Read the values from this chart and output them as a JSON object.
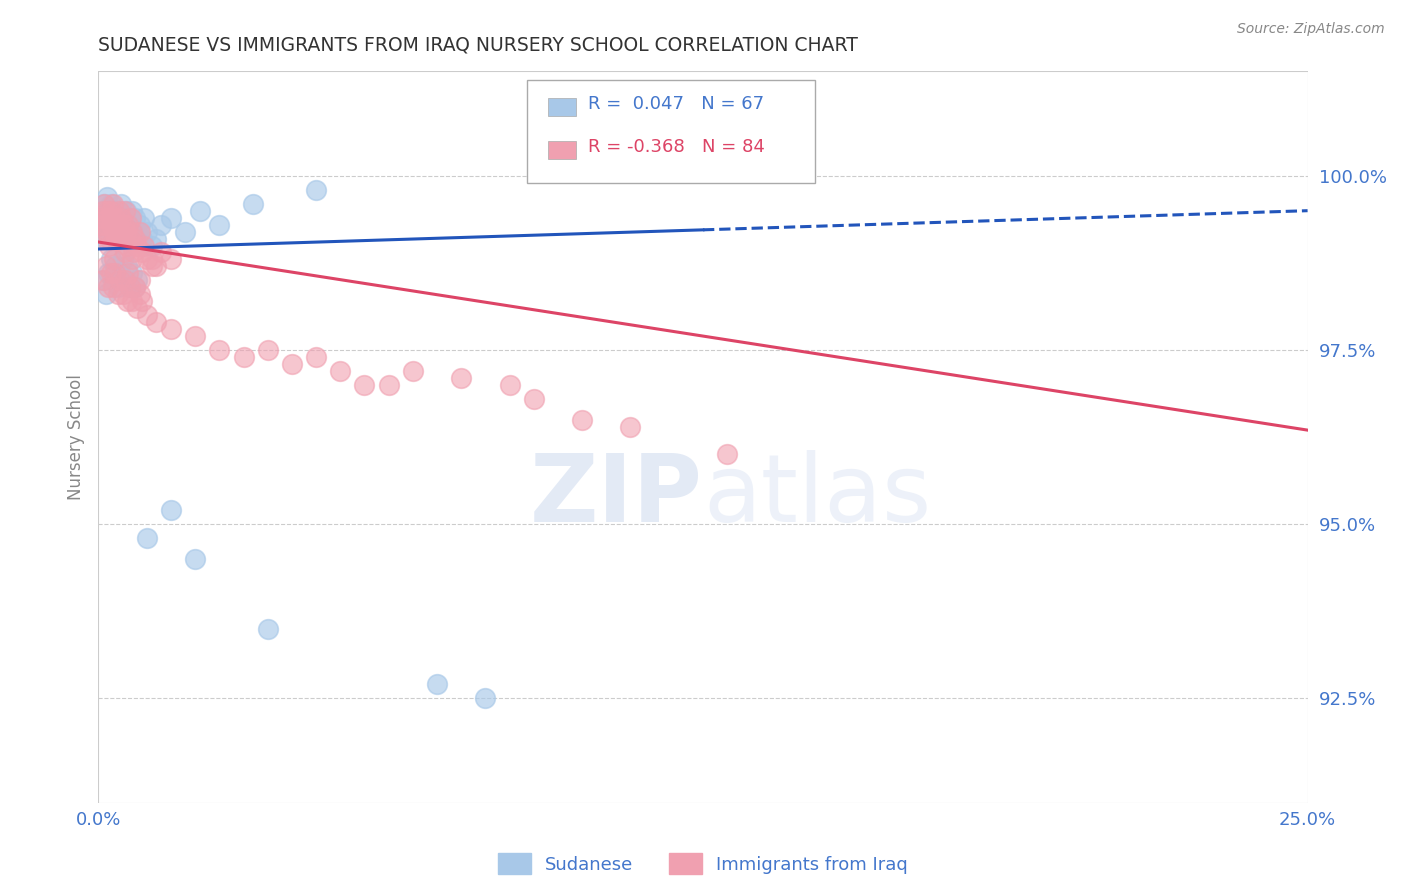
{
  "title": "SUDANESE VS IMMIGRANTS FROM IRAQ NURSERY SCHOOL CORRELATION CHART",
  "source": "Source: ZipAtlas.com",
  "ylabel": "Nursery School",
  "xlim": [
    0.0,
    25.0
  ],
  "ylim": [
    91.0,
    101.5
  ],
  "yticks": [
    92.5,
    95.0,
    97.5,
    100.0
  ],
  "xticks": [
    0.0,
    25.0
  ],
  "legend_r1": "R =  0.047",
  "legend_n1": "N = 67",
  "legend_r2": "R = -0.368",
  "legend_n2": "N = 84",
  "blue_color": "#a8c8e8",
  "pink_color": "#f0a0b0",
  "trend_blue": "#2255bb",
  "trend_pink": "#dd4466",
  "text_color": "#4477cc",
  "blue_slope": 0.022,
  "blue_intercept": 98.95,
  "blue_solid_xmax": 12.5,
  "pink_slope": -0.108,
  "pink_intercept": 99.05,
  "blue_x": [
    0.05,
    0.07,
    0.08,
    0.1,
    0.12,
    0.13,
    0.15,
    0.17,
    0.18,
    0.2,
    0.22,
    0.25,
    0.27,
    0.3,
    0.32,
    0.35,
    0.37,
    0.4,
    0.42,
    0.45,
    0.47,
    0.5,
    0.52,
    0.55,
    0.57,
    0.6,
    0.62,
    0.65,
    0.67,
    0.7,
    0.72,
    0.75,
    0.8,
    0.85,
    0.9,
    0.95,
    1.0,
    1.1,
    1.2,
    1.3,
    1.5,
    1.8,
    2.1,
    2.5,
    3.2,
    4.5,
    0.1,
    0.15,
    0.2,
    0.25,
    0.3,
    0.35,
    0.4,
    0.45,
    0.5,
    0.55,
    0.6,
    0.65,
    0.7,
    0.75,
    0.8,
    1.0,
    1.5,
    2.0,
    3.5,
    7.0,
    8.0
  ],
  "blue_y": [
    99.3,
    99.5,
    99.2,
    99.4,
    99.6,
    99.3,
    99.1,
    99.5,
    99.7,
    99.4,
    99.2,
    99.6,
    99.3,
    99.5,
    99.2,
    99.4,
    99.1,
    99.3,
    99.5,
    99.2,
    99.6,
    99.4,
    99.1,
    99.3,
    99.5,
    99.2,
    99.4,
    99.1,
    99.3,
    99.5,
    99.2,
    99.4,
    99.2,
    99.3,
    99.1,
    99.4,
    99.2,
    99.0,
    99.1,
    99.3,
    99.4,
    99.2,
    99.5,
    99.3,
    99.6,
    99.8,
    98.5,
    98.3,
    98.6,
    98.8,
    98.5,
    98.7,
    98.4,
    98.6,
    98.8,
    98.5,
    98.7,
    98.4,
    98.6,
    98.4,
    98.5,
    94.8,
    95.2,
    94.5,
    93.5,
    92.7,
    92.5
  ],
  "pink_x": [
    0.05,
    0.07,
    0.08,
    0.1,
    0.12,
    0.15,
    0.17,
    0.18,
    0.2,
    0.22,
    0.25,
    0.27,
    0.3,
    0.32,
    0.35,
    0.37,
    0.4,
    0.42,
    0.45,
    0.47,
    0.5,
    0.52,
    0.55,
    0.57,
    0.6,
    0.62,
    0.65,
    0.67,
    0.7,
    0.72,
    0.75,
    0.8,
    0.85,
    0.9,
    0.95,
    1.0,
    1.1,
    1.2,
    1.3,
    1.5,
    0.1,
    0.15,
    0.2,
    0.25,
    0.3,
    0.35,
    0.4,
    0.45,
    0.5,
    0.55,
    0.6,
    0.65,
    0.7,
    0.75,
    0.8,
    0.85,
    0.9,
    1.0,
    1.2,
    1.5,
    2.0,
    2.5,
    3.0,
    3.5,
    4.0,
    5.0,
    6.0,
    7.5,
    8.5,
    9.0,
    4.5,
    5.5,
    6.5,
    10.0,
    11.0,
    13.0,
    0.22,
    0.32,
    0.45,
    0.55,
    0.62,
    0.7,
    0.85,
    1.1
  ],
  "pink_y": [
    99.2,
    99.4,
    99.3,
    99.5,
    99.6,
    99.3,
    99.5,
    99.2,
    99.4,
    99.1,
    99.5,
    99.3,
    99.6,
    99.2,
    99.4,
    99.1,
    99.3,
    99.5,
    99.2,
    99.4,
    99.1,
    99.3,
    99.5,
    99.2,
    99.0,
    99.3,
    99.1,
    99.4,
    99.2,
    98.9,
    99.1,
    99.0,
    99.2,
    98.9,
    99.0,
    98.8,
    98.8,
    98.7,
    98.9,
    98.8,
    98.5,
    98.7,
    98.4,
    98.6,
    98.4,
    98.6,
    98.3,
    98.5,
    98.3,
    98.5,
    98.2,
    98.4,
    98.2,
    98.4,
    98.1,
    98.3,
    98.2,
    98.0,
    97.9,
    97.8,
    97.7,
    97.5,
    97.4,
    97.5,
    97.3,
    97.2,
    97.0,
    97.1,
    97.0,
    96.8,
    97.4,
    97.0,
    97.2,
    96.5,
    96.4,
    96.0,
    99.0,
    98.8,
    99.1,
    98.9,
    98.6,
    98.8,
    98.5,
    98.7
  ]
}
